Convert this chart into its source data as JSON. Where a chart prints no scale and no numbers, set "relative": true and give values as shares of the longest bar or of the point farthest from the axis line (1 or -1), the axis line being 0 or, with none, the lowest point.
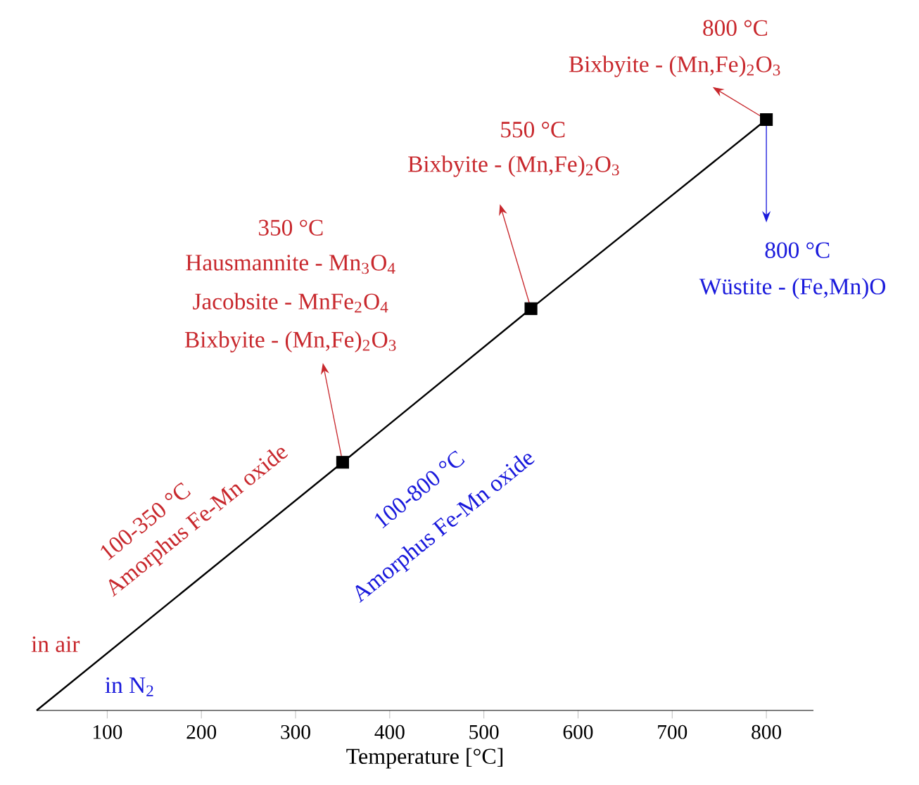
{
  "chart_data": {
    "type": "line",
    "relative": true,
    "xlabel": "Temperature [°C]",
    "xlim": [
      25,
      850
    ],
    "xticks": [
      100,
      200,
      300,
      400,
      500,
      600,
      700,
      800
    ],
    "grid": false,
    "series": [
      {
        "color": "#000000",
        "marker": "none",
        "x": [
          25,
          350,
          550,
          800
        ],
        "values": [
          0,
          0.42,
          0.68,
          1
        ]
      },
      {
        "type": "scatter",
        "color": "#000000",
        "marker": "square",
        "x": [
          350,
          550,
          800
        ],
        "values": [
          0.42,
          0.68,
          1
        ]
      }
    ],
    "annotations": [
      "800 °C",
      "Bixbyite - (Mn,Fe)$_{2}$O$_{3}$",
      "550 °C",
      "Bixbyite - (Mn,Fe)$_{2}$O$_{3}$",
      "350 °C",
      "Hausmannite - Mn$_{3}$O$_{4}$",
      "Jacobsite - MnFe$_{2}$O$_{4}$",
      "Bixbyite - (Mn,Fe)$_{2}$O$_{3}$",
      "800 °C",
      "Wüstite - (Fe,Mn)O",
      "100-350 °C",
      "Amorphus Fe-Mn oxide",
      "100-800 °C",
      "Amorphus Fe-Mn oxide",
      "in air",
      "in N$_{2}$"
    ]
  }
}
